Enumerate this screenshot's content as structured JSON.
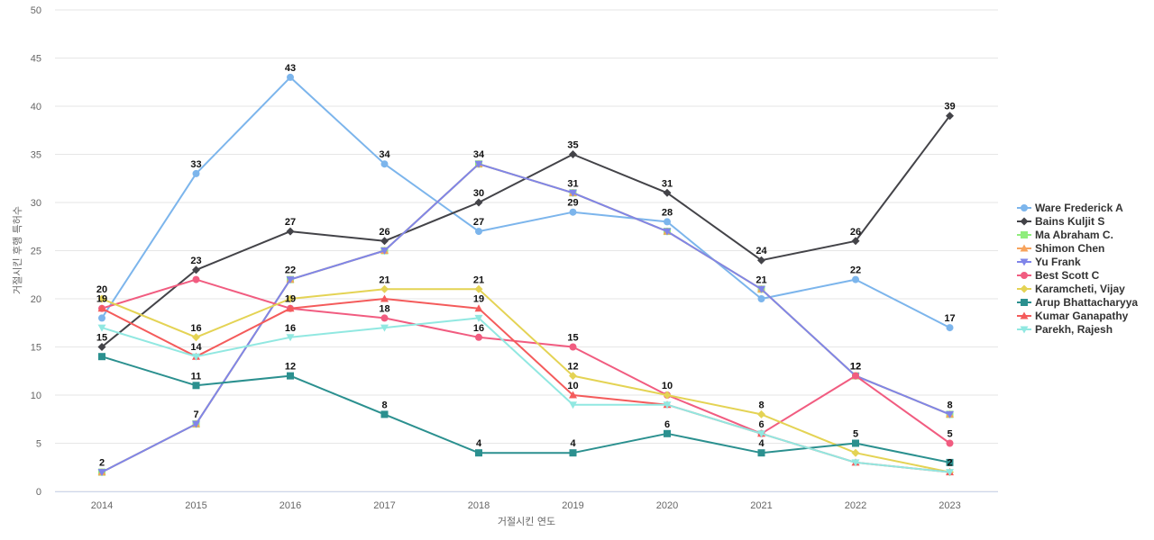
{
  "chart_data": {
    "type": "line",
    "title": "",
    "xlabel": "거절시킨 연도",
    "ylabel": "거절시킨 후행 특허수",
    "x": [
      "2014",
      "2015",
      "2016",
      "2017",
      "2018",
      "2019",
      "2020",
      "2021",
      "2022",
      "2023"
    ],
    "ylim": [
      0,
      50
    ],
    "yticks": [
      0,
      5,
      10,
      15,
      20,
      25,
      30,
      35,
      40,
      45,
      50
    ],
    "grid": true,
    "legend_position": "right",
    "series": [
      {
        "name": "Ware Frederick A",
        "color": "#7cb5ec",
        "marker": "circle",
        "values": [
          18,
          33,
          43,
          34,
          27,
          29,
          28,
          20,
          22,
          17
        ],
        "labels": [
          false,
          true,
          true,
          true,
          true,
          true,
          true,
          false,
          true,
          true
        ]
      },
      {
        "name": "Bains Kuljit S",
        "color": "#434348",
        "marker": "diamond",
        "values": [
          15,
          23,
          27,
          26,
          30,
          35,
          31,
          24,
          26,
          39
        ],
        "labels": [
          true,
          true,
          true,
          true,
          true,
          true,
          true,
          true,
          true,
          true
        ]
      },
      {
        "name": "Ma Abraham C.",
        "color": "#90ed7d",
        "marker": "square",
        "values": [
          2,
          7,
          22,
          25,
          34,
          31,
          27,
          21,
          12,
          8
        ],
        "labels": [
          false,
          false,
          false,
          false,
          false,
          false,
          false,
          false,
          false,
          false
        ]
      },
      {
        "name": "Shimon Chen",
        "color": "#f7a35c",
        "marker": "triangle",
        "values": [
          2,
          7,
          22,
          25,
          34,
          31,
          27,
          21,
          12,
          8
        ],
        "labels": [
          false,
          false,
          false,
          false,
          false,
          false,
          false,
          false,
          false,
          false
        ]
      },
      {
        "name": "Yu Frank",
        "color": "#8085e9",
        "marker": "triangle-down",
        "values": [
          2,
          7,
          22,
          25,
          34,
          31,
          27,
          21,
          12,
          8
        ],
        "labels": [
          true,
          true,
          true,
          false,
          true,
          true,
          false,
          true,
          true,
          true
        ]
      },
      {
        "name": "Best Scott C",
        "color": "#f15c80",
        "marker": "circle",
        "values": [
          19,
          22,
          19,
          18,
          16,
          15,
          10,
          6,
          12,
          5
        ],
        "labels": [
          false,
          false,
          true,
          true,
          true,
          true,
          true,
          true,
          true,
          true
        ]
      },
      {
        "name": "Karamcheti, Vijay",
        "color": "#e4d354",
        "marker": "diamond",
        "values": [
          20,
          16,
          20,
          21,
          21,
          12,
          10,
          8,
          4,
          2
        ],
        "labels": [
          true,
          true,
          false,
          true,
          true,
          true,
          false,
          true,
          false,
          false
        ]
      },
      {
        "name": "Arup Bhattacharyya",
        "color": "#2b908f",
        "marker": "square",
        "values": [
          14,
          11,
          12,
          8,
          4,
          4,
          6,
          4,
          5,
          3
        ],
        "labels": [
          false,
          true,
          true,
          true,
          true,
          true,
          true,
          true,
          true,
          false
        ]
      },
      {
        "name": "Kumar Ganapathy",
        "color": "#f45b5b",
        "marker": "triangle",
        "values": [
          19,
          14,
          19,
          20,
          19,
          10,
          9,
          6,
          3,
          2
        ],
        "labels": [
          true,
          true,
          false,
          false,
          true,
          true,
          false,
          false,
          false,
          false
        ]
      },
      {
        "name": "Parekh, Rajesh",
        "color": "#91e8e1",
        "marker": "triangle-down",
        "values": [
          17,
          14,
          16,
          17,
          18,
          9,
          9,
          6,
          3,
          2
        ],
        "labels": [
          false,
          false,
          true,
          false,
          false,
          false,
          false,
          false,
          false,
          true
        ]
      }
    ]
  }
}
